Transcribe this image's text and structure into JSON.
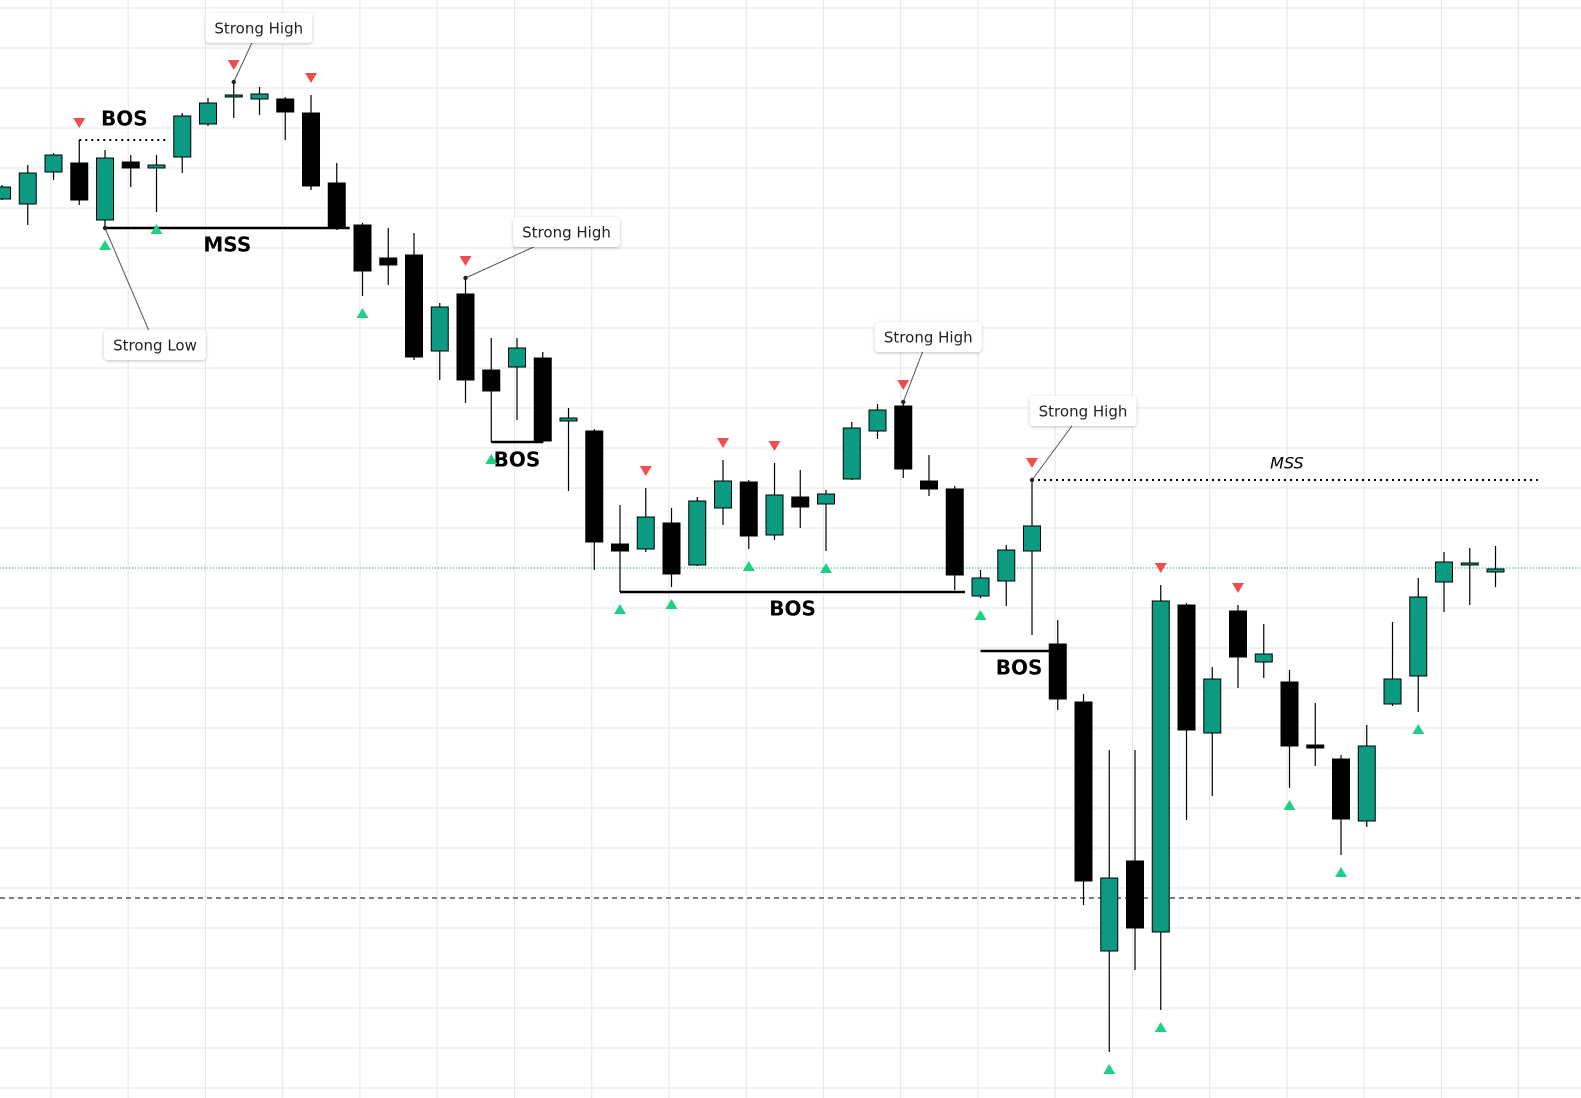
{
  "chart_data": {
    "type": "candlestick",
    "categories": [
      null,
      null,
      null,
      null,
      null,
      null,
      null,
      null,
      null,
      null,
      null,
      null,
      null,
      null,
      null,
      null,
      null,
      null,
      null,
      null,
      null,
      null,
      null,
      null,
      null,
      null,
      null,
      null,
      null,
      null,
      null,
      null,
      null,
      null,
      null,
      null,
      null,
      null,
      null,
      null,
      null,
      null,
      null,
      null,
      null,
      null,
      null,
      null,
      null,
      null,
      null,
      null,
      null,
      null,
      null,
      null,
      null,
      null,
      null
    ],
    "open": [
      899,
      894,
      926,
      935,
      878,
      936,
      930,
      941,
      974,
      1001,
      999,
      999,
      985,
      915,
      873,
      840,
      843,
      747,
      804,
      728,
      731,
      740,
      677,
      667,
      554,
      549,
      575,
      533,
      590,
      616,
      563,
      601,
      594,
      619,
      667,
      692,
      617,
      609,
      502,
      517,
      547,
      454,
      396,
      147,
      237,
      166,
      493,
      365,
      487,
      436,
      416,
      353,
      339,
      277,
      394,
      422,
      516,
      533,
      526
    ],
    "high": [
      913,
      933,
      945,
      958,
      948,
      943,
      943,
      985,
      1000,
      1016,
      1011,
      1001,
      1003,
      935,
      875,
      870,
      865,
      795,
      820,
      760,
      760,
      746,
      690,
      669,
      593,
      610,
      590,
      601,
      638,
      618,
      635,
      628,
      608,
      676,
      694,
      696,
      643,
      612,
      528,
      553,
      618,
      478,
      404,
      348,
      348,
      513,
      495,
      431,
      493,
      474,
      428,
      395,
      343,
      373,
      476,
      520,
      546,
      550,
      552
    ],
    "low": [
      898,
      873,
      918,
      893,
      870,
      911,
      886,
      925,
      972,
      980,
      983,
      958,
      908,
      868,
      802,
      813,
      738,
      718,
      695,
      656,
      678,
      655,
      607,
      528,
      506,
      546,
      511,
      532,
      573,
      549,
      558,
      570,
      547,
      618,
      659,
      620,
      602,
      508,
      500,
      492,
      463,
      388,
      193,
      46,
      128,
      88,
      278,
      302,
      410,
      420,
      310,
      332,
      243,
      271,
      392,
      386,
      486,
      493,
      511
    ],
    "close": [
      911,
      925,
      943,
      898,
      940,
      930,
      933,
      982,
      995,
      1003,
      1004,
      986,
      912,
      870,
      827,
      833,
      741,
      791,
      718,
      707,
      750,
      657,
      680,
      556,
      547,
      581,
      524,
      597,
      617,
      562,
      603,
      591,
      604,
      670,
      688,
      629,
      609,
      523,
      520,
      548,
      572,
      399,
      217,
      220,
      170,
      497,
      368,
      419,
      441,
      444,
      352,
      350,
      279,
      352,
      419,
      501,
      536,
      535,
      529
    ],
    "up_color": "#0b9a82",
    "down_color": "#000000",
    "xlim": [
      -0.078,
      61.32
    ],
    "ylim": [
      0,
      1098
    ],
    "xticks": [
      1.9,
      4.9,
      7.9,
      10.9,
      13.9,
      16.9,
      19.9,
      22.9,
      25.9,
      28.9,
      31.9,
      34.9,
      37.9,
      40.9,
      43.9,
      46.9,
      49.9,
      52.9,
      55.9,
      58.9
    ],
    "yticks": [
      1090,
      1050,
      1010,
      970,
      930,
      890,
      850,
      810,
      770,
      730,
      690,
      650,
      610,
      570,
      530,
      490,
      450,
      410,
      370,
      330,
      290,
      250,
      210,
      170,
      130,
      90,
      50,
      10
    ],
    "grid": true,
    "swing_highs": [
      3,
      9,
      12,
      18,
      25,
      28,
      30,
      35,
      40,
      45,
      48
    ],
    "swing_lows": [
      4,
      6,
      14,
      19,
      24,
      26,
      29,
      32,
      38,
      43,
      45,
      50,
      52,
      55
    ],
    "high_marker_color": "#f04e4e",
    "low_marker_color": "#1fd184",
    "structures": [
      {
        "label": "BOS",
        "level": 958,
        "from": 3,
        "to": 6.5,
        "style": "dotted"
      },
      {
        "label": "MSS",
        "level": 870,
        "from": 4,
        "to": 13.5,
        "style": "solid"
      },
      {
        "label": "BOS",
        "level": 656,
        "from": 19,
        "to": 21,
        "style": "solid"
      },
      {
        "label": "BOS",
        "level": 506,
        "from": 24,
        "to": 37.4,
        "style": "solid"
      },
      {
        "label": "BOS",
        "level": 447,
        "from": 38,
        "to": 41,
        "style": "solid"
      },
      {
        "label": "MSS",
        "level": 618,
        "from": 40,
        "to": 59.8,
        "style": "dotted"
      }
    ],
    "callouts": [
      {
        "text": "Strong High",
        "index": 9,
        "at": "high"
      },
      {
        "text": "Strong Low",
        "index": 4,
        "at": "low"
      },
      {
        "text": "Strong High",
        "index": 18,
        "at": "high"
      },
      {
        "text": "Strong High",
        "index": 35,
        "at": "high"
      },
      {
        "text": "Strong High",
        "index": 40,
        "at": "high"
      }
    ],
    "price_line": 530,
    "price_line_color": "#1fb37a",
    "dashed_level": 200
  }
}
